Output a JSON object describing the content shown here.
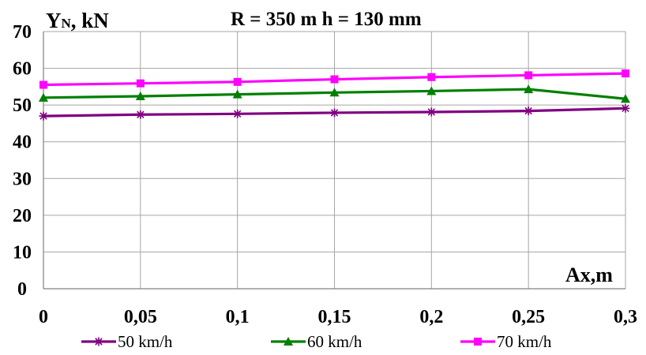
{
  "chart_data": {
    "type": "line",
    "title": "R = 350 m  h = 130 mm",
    "ylabel_main": "Y",
    "ylabel_sub": "N",
    "ylabel_unit": ", kN",
    "xlabel": "Ax,m",
    "x": [
      0,
      0.05,
      0.1,
      0.15,
      0.2,
      0.25,
      0.3
    ],
    "x_tick_labels": [
      "0",
      "0,05",
      "0,1",
      "0,15",
      "0,2",
      "0,25",
      "0,3"
    ],
    "ylim": [
      0,
      70
    ],
    "y_ticks": [
      0,
      10,
      20,
      30,
      40,
      50,
      60,
      70
    ],
    "y_tick_labels": [
      "0",
      "10",
      "20",
      "30",
      "40",
      "50",
      "60",
      "70"
    ],
    "grid": true,
    "legend_position": "bottom",
    "series": [
      {
        "name": "50 km/h",
        "color": "#800080",
        "marker": "asterisk",
        "x": [
          0,
          0.05,
          0.1,
          0.15,
          0.2,
          0.25,
          0.3
        ],
        "values": [
          47.0,
          47.4,
          47.6,
          47.9,
          48.1,
          48.4,
          49.1
        ]
      },
      {
        "name": "60 km/h",
        "color": "#008000",
        "marker": "triangle",
        "x": [
          0,
          0.05,
          0.1,
          0.15,
          0.2,
          0.25,
          0.3
        ],
        "values": [
          52.0,
          52.4,
          52.9,
          53.4,
          53.8,
          54.3,
          51.7
        ]
      },
      {
        "name": "70 km/h",
        "color": "#ff00ff",
        "marker": "square",
        "x": [
          0,
          0.05,
          0.1,
          0.15,
          0.2,
          0.25,
          0.3
        ],
        "values": [
          55.5,
          55.9,
          56.3,
          57.0,
          57.6,
          58.1,
          58.6
        ]
      }
    ]
  }
}
